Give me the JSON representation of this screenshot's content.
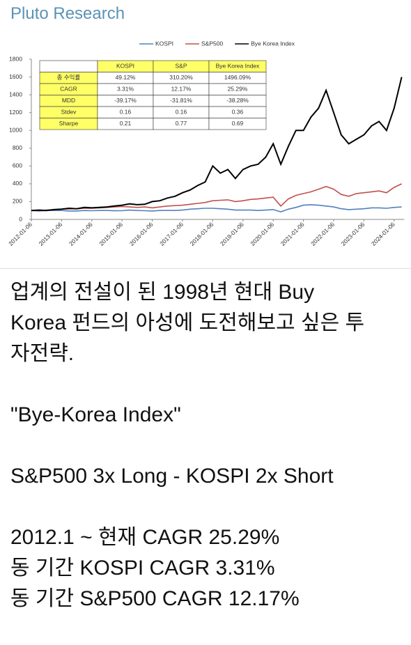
{
  "header": {
    "title": "Pluto Research"
  },
  "chart_data": {
    "type": "line",
    "x": [
      "2012-01-06",
      "2012-04-06",
      "2012-07-06",
      "2012-10-06",
      "2013-01-06",
      "2013-04-06",
      "2013-07-06",
      "2013-10-06",
      "2014-01-06",
      "2014-04-06",
      "2014-07-06",
      "2014-10-06",
      "2015-01-06",
      "2015-04-06",
      "2015-07-06",
      "2015-10-06",
      "2016-01-06",
      "2016-04-06",
      "2016-07-06",
      "2016-10-06",
      "2017-01-06",
      "2017-04-06",
      "2017-07-06",
      "2017-10-06",
      "2018-01-06",
      "2018-04-06",
      "2018-07-06",
      "2018-10-06",
      "2019-01-06",
      "2019-04-06",
      "2019-07-06",
      "2019-10-06",
      "2020-01-06",
      "2020-04-06",
      "2020-07-06",
      "2020-10-06",
      "2021-01-06",
      "2021-04-06",
      "2021-07-06",
      "2021-10-06",
      "2022-01-06",
      "2022-04-06",
      "2022-07-06",
      "2022-10-06",
      "2023-01-06",
      "2023-04-06",
      "2023-07-06",
      "2023-10-06",
      "2024-01-06",
      "2024-04-06"
    ],
    "series": [
      {
        "name": "KOSPI",
        "color": "#4f81bd",
        "values": [
          100,
          95,
          100,
          100,
          100,
          95,
          95,
          100,
          98,
          100,
          100,
          97,
          98,
          105,
          100,
          98,
          95,
          100,
          102,
          100,
          105,
          115,
          120,
          125,
          125,
          120,
          115,
          105,
          105,
          105,
          100,
          105,
          110,
          85,
          115,
          135,
          160,
          165,
          160,
          150,
          140,
          120,
          110,
          115,
          120,
          130,
          130,
          125,
          135,
          140
        ]
      },
      {
        "name": "S&P500",
        "color": "#c0504d",
        "values": [
          100,
          102,
          105,
          110,
          115,
          118,
          120,
          125,
          125,
          130,
          135,
          140,
          145,
          140,
          135,
          140,
          130,
          140,
          150,
          155,
          160,
          170,
          180,
          190,
          210,
          215,
          220,
          200,
          210,
          225,
          230,
          240,
          250,
          150,
          230,
          270,
          290,
          310,
          340,
          370,
          340,
          280,
          260,
          290,
          300,
          310,
          320,
          300,
          360,
          400
        ]
      },
      {
        "name": "Bye Korea Index",
        "color": "#000000",
        "values": [
          100,
          105,
          100,
          110,
          115,
          125,
          120,
          135,
          130,
          135,
          140,
          150,
          160,
          175,
          165,
          170,
          200,
          210,
          240,
          260,
          300,
          330,
          380,
          420,
          600,
          520,
          560,
          460,
          560,
          600,
          620,
          700,
          850,
          620,
          820,
          1000,
          1000,
          1150,
          1250,
          1450,
          1200,
          950,
          850,
          900,
          950,
          1050,
          1100,
          1000,
          1250,
          1600
        ]
      }
    ],
    "ylim": [
      0,
      1800
    ],
    "yticks": [
      0,
      200,
      400,
      600,
      800,
      1000,
      1200,
      1400,
      1600,
      1800
    ],
    "xlim": [
      "2012-01-06",
      "2024-05-06"
    ],
    "xticks": [
      "2012-01-06",
      "2013-01-06",
      "2014-01-06",
      "2015-01-06",
      "2016-01-06",
      "2017-01-06",
      "2018-01-06",
      "2019-01-06",
      "2020-01-06",
      "2021-01-06",
      "2022-01-06",
      "2023-01-06",
      "2024-01-06"
    ],
    "legend": "top"
  },
  "table": {
    "columns": [
      "KOSPI",
      "S&P",
      "Bye Korea Index"
    ],
    "rows": [
      [
        "총 수익률",
        "49.12%",
        "310.20%",
        "1496.09%"
      ],
      [
        "CAGR",
        "3.31%",
        "12.17%",
        "25.29%"
      ],
      [
        "MDD",
        "-39.17%",
        "-31.81%",
        "-38.28%"
      ],
      [
        "Stdev",
        "0.16",
        "0.16",
        "0.36"
      ],
      [
        "Sharpe",
        "0.21",
        "0.77",
        "0.69"
      ]
    ]
  },
  "post": {
    "paragraphs": [
      [
        "업계의 전설이 된 1998년 현대 Buy",
        "Korea 펀드의 아성에 도전해보고 싶은 투",
        "자전략."
      ],
      [
        "\"Bye-Korea Index\""
      ],
      [
        "S&P500 3x Long - KOSPI 2x Short"
      ],
      [
        "2012.1 ~ 현재 CAGR 25.29%",
        "동 기간 KOSPI CAGR 3.31%",
        "동 기간 S&P500 CAGR 12.17%"
      ]
    ]
  }
}
